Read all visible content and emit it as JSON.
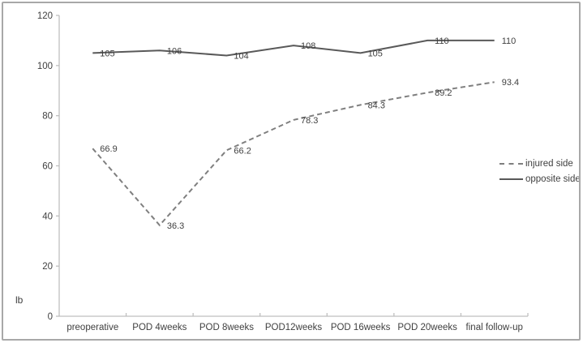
{
  "figure": {
    "background": "#ffffff",
    "frame_color": "#a8a8a8"
  },
  "chart_data": {
    "type": "line",
    "title": "",
    "xlabel": "",
    "ylabel": "lb",
    "categories": [
      "preoperative",
      "POD 4weeks",
      "POD 8weeks",
      "POD12weeks",
      "POD 16weeks",
      "POD 20weeks",
      "final follow-up"
    ],
    "series": [
      {
        "name": "injured side",
        "values": [
          66.9,
          36.3,
          66.2,
          78.3,
          84.3,
          89.2,
          93.4
        ],
        "style": "dashed",
        "color": "#7f7f7f"
      },
      {
        "name": "opposite side",
        "values": [
          105,
          106,
          104,
          108,
          105,
          110,
          110
        ],
        "style": "solid",
        "color": "#595959"
      }
    ],
    "ylim": [
      0,
      120
    ],
    "ytick_step": 20,
    "ytick_labels": [
      "0",
      "20",
      "40",
      "60",
      "80",
      "100",
      "120"
    ],
    "grid": false,
    "data_labels_shown": true,
    "legend_position": "right",
    "axis_color": "#bfbfbf",
    "text_color": "#3f3f3f"
  }
}
